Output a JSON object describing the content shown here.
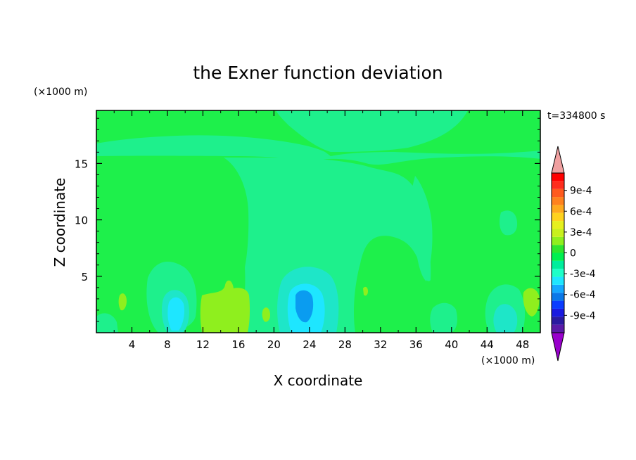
{
  "chart_data": {
    "type": "heatmap",
    "title": "the Exner function deviation",
    "xlabel": "X coordinate",
    "ylabel": "Z coordinate",
    "x_unit": "(×1000 m)",
    "y_unit": "(×1000 m)",
    "time_label": "t=334800 s",
    "xlim": [
      0,
      50
    ],
    "ylim": [
      0,
      19.7
    ],
    "x_ticks": [
      "4",
      "8",
      "12",
      "16",
      "20",
      "24",
      "28",
      "32",
      "36",
      "40",
      "44",
      "48"
    ],
    "y_ticks": [
      "5",
      "10",
      "15"
    ],
    "colorbar": {
      "levels": [
        -0.0009,
        -0.0006,
        -0.0003,
        0,
        0.0003,
        0.0006,
        0.0009
      ],
      "labels": [
        "-9e-4",
        "-6e-4",
        "-3e-4",
        "0",
        "3e-4",
        "6e-4",
        "9e-4"
      ],
      "colors": [
        "#9900cc",
        "#5a1aa8",
        "#2a1aa0",
        "#1a1ae0",
        "#0a3cff",
        "#0a78e8",
        "#14a8ff",
        "#1ee6ff",
        "#1effc8",
        "#00ee9c",
        "#00f050",
        "#2ee62e",
        "#8fef1e",
        "#c8f01e",
        "#e6f01e",
        "#ffd21e",
        "#ffaa1e",
        "#ff821e",
        "#ff5a1e",
        "#ff2d1e",
        "#ff0000",
        "#f0a0a0"
      ]
    },
    "background_color": "#1ef04b",
    "field_regions": [
      {
        "name": "upper-teal-band",
        "color": "#1ef08c",
        "x": [
          0,
          12,
          20,
          26,
          31,
          50
        ],
        "y": [
          16.8,
          16.0,
          16.2,
          15.8,
          16.3,
          16.9
        ]
      },
      {
        "name": "central-teal-column",
        "color": "#1ef08c",
        "x_center": 24,
        "x_halfwidth": 6,
        "y_range": [
          0,
          19.7
        ]
      },
      {
        "name": "low-level-cyan-blobs",
        "color": "#1ee6c8",
        "centers": [
          [
            9.5,
            2.5
          ],
          [
            23,
            2.5
          ],
          [
            46,
            2.5
          ]
        ]
      },
      {
        "name": "min-core",
        "color": "#0a9cf0",
        "center": [
          23.5,
          2.5
        ],
        "value": -0.0003
      },
      {
        "name": "yellow-green-patch",
        "color": "#8fef1e",
        "x": [
          12,
          17.5
        ],
        "y": [
          0,
          4
        ]
      }
    ]
  }
}
